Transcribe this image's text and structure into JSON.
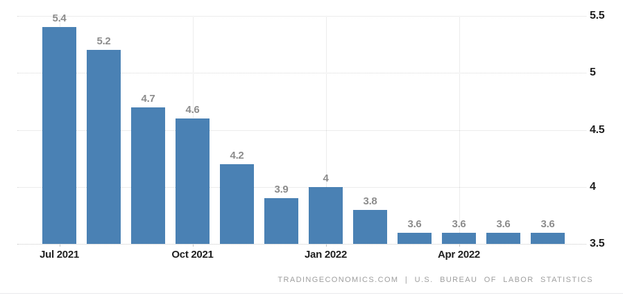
{
  "chart_data": {
    "type": "bar",
    "values": [
      5.4,
      5.2,
      4.7,
      4.6,
      4.2,
      3.9,
      4,
      3.8,
      3.6,
      3.6,
      3.6,
      3.6
    ],
    "data_labels": [
      "5.4",
      "5.2",
      "4.7",
      "4.6",
      "4.2",
      "3.9",
      "4",
      "3.8",
      "3.6",
      "3.6",
      "3.6",
      "3.6"
    ],
    "x_ticks": [
      {
        "bar_index": 0,
        "label": "Jul 2021"
      },
      {
        "bar_index": 3,
        "label": "Oct 2021"
      },
      {
        "bar_index": 6,
        "label": "Jan 2022"
      },
      {
        "bar_index": 9,
        "label": "Apr 2022"
      }
    ],
    "y_ticks": [
      "5.5",
      "5",
      "4.5",
      "4",
      "3.5"
    ],
    "ylim": [
      3.5,
      5.5
    ],
    "grid": "dotted, horizontal at each y tick and vertical at each x tick",
    "legend": "none",
    "title": "",
    "xlabel": "",
    "ylabel": "",
    "bar_color": "#4A81B4"
  },
  "colors": {
    "bar": "#4A81B4",
    "gridline": "#d9d9d9",
    "value_label": "#8c8c8c",
    "axis_label": "#1f1f1f",
    "attribution": "#9e9e9e",
    "background": "#ffffff"
  },
  "footer": {
    "attribution": "TRADINGECONOMICS.COM | U.S. BUREAU OF LABOR STATISTICS"
  }
}
